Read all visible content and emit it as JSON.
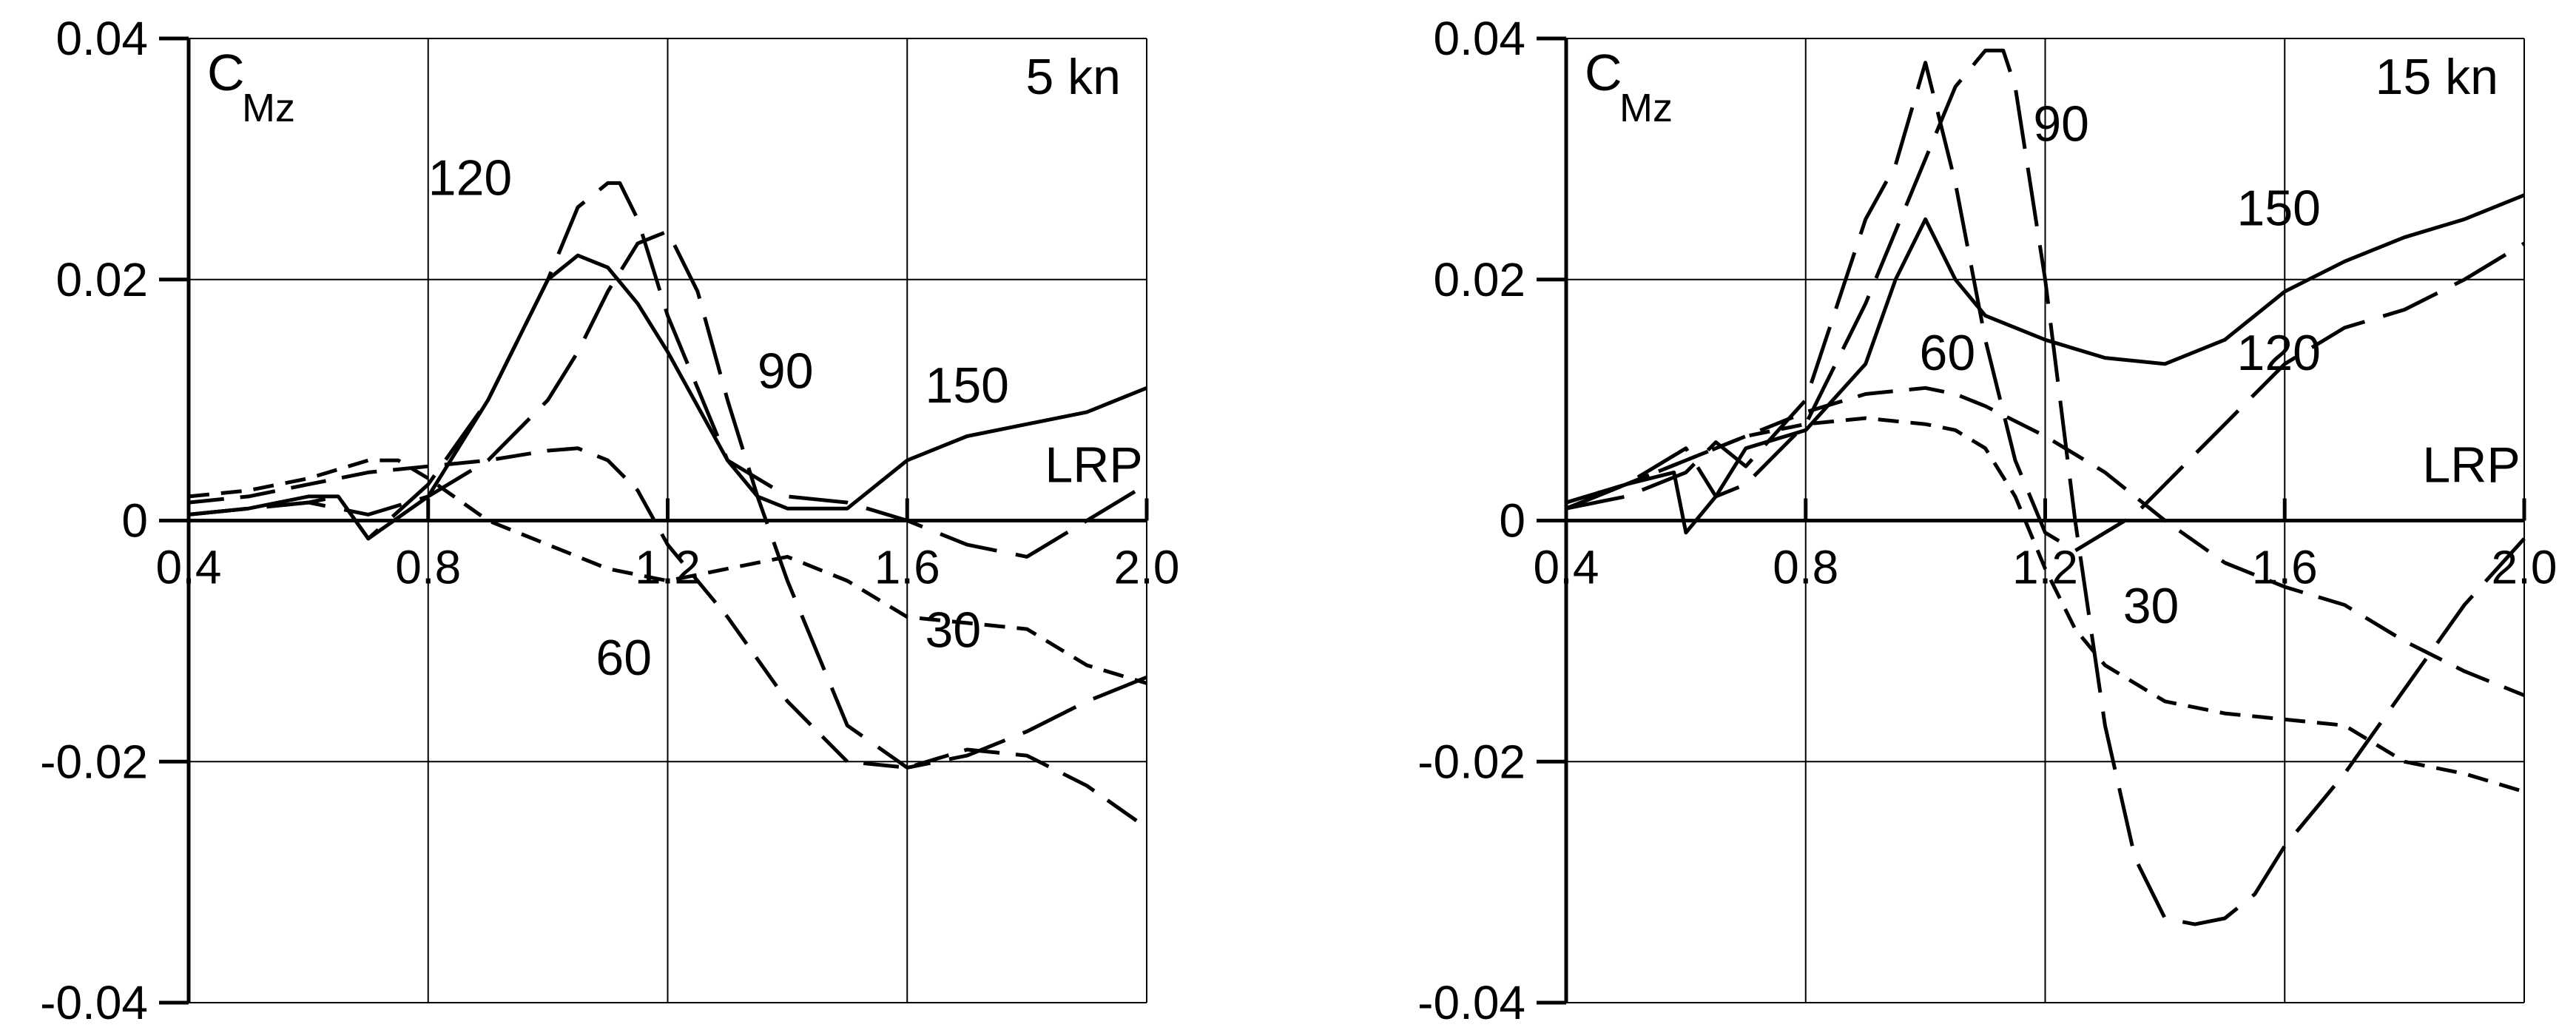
{
  "chart_data": [
    {
      "type": "line",
      "panel_label": "5 kn",
      "ylabel": "C",
      "ylabel_sub": "Mz",
      "xlim": [
        0.4,
        2.0
      ],
      "ylim": [
        -0.04,
        0.04
      ],
      "x_ticks": [
        "0.4",
        "0.8",
        "1.2",
        "1.6",
        "2.0"
      ],
      "y_ticks": [
        "-0.04",
        "-0.02",
        "0",
        "0.02",
        "0.04"
      ],
      "grid": true,
      "series": [
        {
          "name": "30",
          "dash": "short",
          "x": [
            0.4,
            0.5,
            0.6,
            0.7,
            0.75,
            0.8,
            0.9,
            1.0,
            1.1,
            1.2,
            1.3,
            1.4,
            1.5,
            1.6,
            1.7,
            1.8,
            1.9,
            2.0
          ],
          "y": [
            0.002,
            0.0025,
            0.0035,
            0.005,
            0.005,
            0.0035,
            0.0,
            -0.002,
            -0.004,
            -0.005,
            -0.004,
            -0.003,
            -0.005,
            -0.008,
            -0.0085,
            -0.009,
            -0.012,
            -0.0135
          ]
        },
        {
          "name": "60",
          "dash": "medium",
          "x": [
            0.4,
            0.5,
            0.6,
            0.7,
            0.8,
            0.9,
            1.0,
            1.05,
            1.1,
            1.15,
            1.2,
            1.3,
            1.4,
            1.5,
            1.6,
            1.7,
            1.8,
            1.9,
            2.0
          ],
          "y": [
            0.0015,
            0.002,
            0.003,
            0.004,
            0.0045,
            0.005,
            0.0058,
            0.006,
            0.005,
            0.0025,
            -0.002,
            -0.008,
            -0.015,
            -0.02,
            -0.0205,
            -0.019,
            -0.0195,
            -0.022,
            -0.0255
          ]
        },
        {
          "name": "90",
          "dash": "long",
          "x": [
            0.4,
            0.5,
            0.6,
            0.7,
            0.8,
            0.9,
            1.0,
            1.05,
            1.1,
            1.15,
            1.2,
            1.25,
            1.3,
            1.35,
            1.4,
            1.5,
            1.6,
            1.7,
            1.8,
            1.9,
            2.0
          ],
          "y": [
            0.0005,
            0.001,
            0.0015,
            0.0005,
            0.002,
            0.005,
            0.01,
            0.014,
            0.019,
            0.023,
            0.024,
            0.019,
            0.01,
            0.002,
            -0.005,
            -0.017,
            -0.0205,
            -0.0195,
            -0.0175,
            -0.015,
            -0.013
          ]
        },
        {
          "name": "120",
          "dash": "long",
          "x": [
            0.4,
            0.5,
            0.6,
            0.65,
            0.7,
            0.8,
            0.9,
            1.0,
            1.05,
            1.1,
            1.12,
            1.15,
            1.2,
            1.3,
            1.4,
            1.5,
            1.6,
            1.7,
            1.8,
            1.9,
            2.0
          ],
          "y": [
            0.0005,
            0.001,
            0.0015,
            0.002,
            -0.0015,
            0.003,
            0.01,
            0.02,
            0.026,
            0.028,
            0.028,
            0.025,
            0.017,
            0.005,
            0.002,
            0.0015,
            0.0,
            -0.002,
            -0.003,
            0.0,
            0.003
          ]
        },
        {
          "name": "150",
          "dash": "solid",
          "x": [
            0.4,
            0.5,
            0.6,
            0.65,
            0.7,
            0.8,
            0.9,
            1.0,
            1.05,
            1.1,
            1.15,
            1.2,
            1.3,
            1.35,
            1.4,
            1.5,
            1.6,
            1.7,
            1.8,
            1.9,
            2.0
          ],
          "y": [
            0.0005,
            0.001,
            0.002,
            0.002,
            -0.0015,
            0.002,
            0.01,
            0.02,
            0.022,
            0.021,
            0.018,
            0.014,
            0.005,
            0.002,
            0.001,
            0.001,
            0.005,
            0.007,
            0.008,
            0.009,
            0.011
          ]
        }
      ],
      "annotations": [
        {
          "text": "120",
          "x": 0.16,
          "y": 0.027
        },
        {
          "text": "90",
          "x": 1.35,
          "y": 0.011
        },
        {
          "text": "150",
          "x": 1.63,
          "y": 0.0098
        },
        {
          "text": "LRP",
          "x": 1.83,
          "y": 0.0032
        },
        {
          "text": "60",
          "x": 1.08,
          "y": -0.0128
        },
        {
          "text": "30",
          "x": 1.63,
          "y": -0.0105
        }
      ]
    },
    {
      "type": "line",
      "panel_label": "15 kn",
      "ylabel": "C",
      "ylabel_sub": "Mz",
      "xlim": [
        0.4,
        2.0
      ],
      "ylim": [
        -0.04,
        0.04
      ],
      "x_ticks": [
        "0.4",
        "0.8",
        "1.2",
        "1.6",
        "2.0"
      ],
      "y_ticks": [
        "-0.04",
        "-0.02",
        "0",
        "0.02",
        "0.04"
      ],
      "grid": true,
      "series": [
        {
          "name": "30",
          "dash": "short",
          "x": [
            0.4,
            0.5,
            0.6,
            0.7,
            0.8,
            0.9,
            1.0,
            1.05,
            1.1,
            1.15,
            1.2,
            1.25,
            1.3,
            1.4,
            1.5,
            1.6,
            1.7,
            1.8,
            1.9,
            2.0
          ],
          "y": [
            0.0015,
            0.003,
            0.005,
            0.007,
            0.008,
            0.0085,
            0.008,
            0.0075,
            0.006,
            0.002,
            -0.004,
            -0.009,
            -0.012,
            -0.015,
            -0.016,
            -0.0165,
            -0.017,
            -0.02,
            -0.021,
            -0.0225
          ]
        },
        {
          "name": "60",
          "dash": "medium",
          "x": [
            0.4,
            0.5,
            0.6,
            0.7,
            0.8,
            0.9,
            1.0,
            1.05,
            1.1,
            1.2,
            1.3,
            1.4,
            1.5,
            1.6,
            1.7,
            1.8,
            1.9,
            2.0
          ],
          "y": [
            0.0015,
            0.003,
            0.005,
            0.007,
            0.009,
            0.0105,
            0.011,
            0.0105,
            0.0095,
            0.007,
            0.004,
            0.0,
            -0.0035,
            -0.0055,
            -0.007,
            -0.01,
            -0.0125,
            -0.0145
          ]
        },
        {
          "name": "90",
          "dash": "long",
          "x": [
            0.4,
            0.5,
            0.6,
            0.65,
            0.7,
            0.8,
            0.9,
            1.0,
            1.05,
            1.1,
            1.13,
            1.15,
            1.2,
            1.25,
            1.3,
            1.35,
            1.4,
            1.45,
            1.5,
            1.55,
            1.6,
            1.7,
            1.8,
            1.9,
            2.0
          ],
          "y": [
            0.001,
            0.003,
            0.006,
            0.002,
            0.003,
            0.008,
            0.018,
            0.03,
            0.036,
            0.039,
            0.039,
            0.036,
            0.02,
            0.0,
            -0.017,
            -0.028,
            -0.033,
            -0.0335,
            -0.033,
            -0.031,
            -0.027,
            -0.021,
            -0.014,
            -0.007,
            -0.0015
          ]
        },
        {
          "name": "120",
          "dash": "long",
          "x": [
            0.4,
            0.5,
            0.6,
            0.65,
            0.7,
            0.8,
            0.9,
            0.95,
            1.0,
            1.05,
            1.1,
            1.15,
            1.2,
            1.25,
            1.3,
            1.35,
            1.4,
            1.5,
            1.6,
            1.7,
            1.8,
            1.9,
            2.0
          ],
          "y": [
            0.001,
            0.002,
            0.004,
            0.0065,
            0.0045,
            0.01,
            0.025,
            0.0295,
            0.038,
            0.028,
            0.015,
            0.005,
            -0.001,
            -0.0025,
            -0.001,
            0.0005,
            0.003,
            0.008,
            0.013,
            0.016,
            0.0175,
            0.02,
            0.023
          ]
        },
        {
          "name": "150",
          "dash": "solid",
          "x": [
            0.4,
            0.5,
            0.58,
            0.6,
            0.65,
            0.7,
            0.8,
            0.9,
            0.95,
            1.0,
            1.05,
            1.1,
            1.2,
            1.3,
            1.4,
            1.5,
            1.6,
            1.7,
            1.8,
            1.9,
            2.0
          ],
          "y": [
            0.001,
            0.003,
            0.004,
            -0.001,
            0.002,
            0.006,
            0.0075,
            0.013,
            0.02,
            0.025,
            0.02,
            0.017,
            0.015,
            0.0135,
            0.013,
            0.015,
            0.019,
            0.0215,
            0.0235,
            0.025,
            0.027
          ]
        }
      ],
      "annotations": [
        {
          "text": "90",
          "x": 1.18,
          "y": 0.0315
        },
        {
          "text": "150",
          "x": 1.52,
          "y": 0.0245
        },
        {
          "text": "120",
          "x": 1.52,
          "y": 0.0125
        },
        {
          "text": "60",
          "x": 0.99,
          "y": 0.0125
        },
        {
          "text": "LRP",
          "x": 1.83,
          "y": 0.0032
        },
        {
          "text": "30",
          "x": 1.33,
          "y": -0.0085
        }
      ]
    }
  ]
}
